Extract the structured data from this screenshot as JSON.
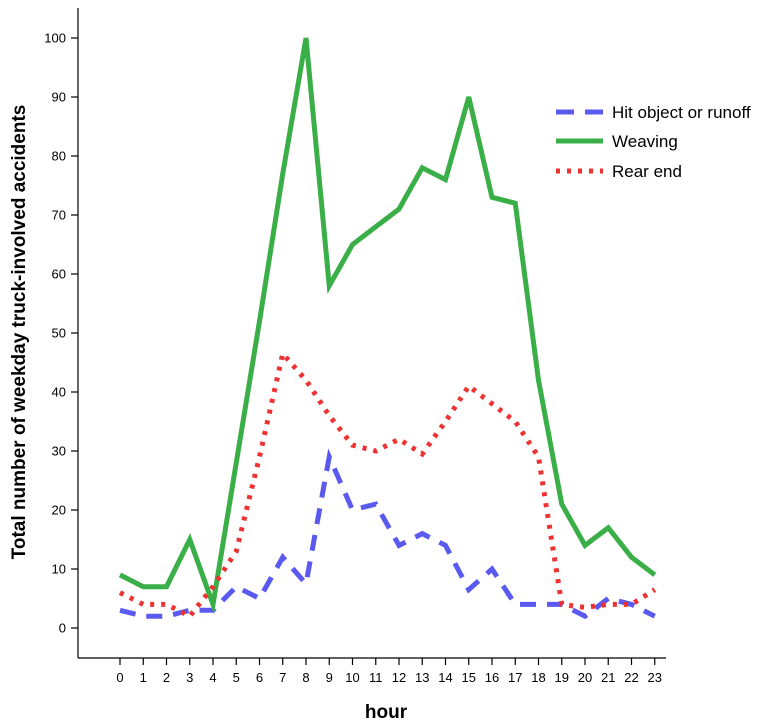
{
  "chart_data": {
    "type": "line",
    "title": "",
    "xlabel": "hour",
    "ylabel": "Total number of weekday truck-involved accidents",
    "x": [
      0,
      1,
      2,
      3,
      4,
      5,
      6,
      7,
      8,
      9,
      10,
      11,
      12,
      13,
      14,
      15,
      16,
      17,
      18,
      19,
      20,
      21,
      22,
      23
    ],
    "xticks": [
      "0",
      "1",
      "2",
      "3",
      "4",
      "5",
      "6",
      "7",
      "8",
      "9",
      "10",
      "11",
      "12",
      "13",
      "14",
      "15",
      "16",
      "17",
      "18",
      "19",
      "20",
      "21",
      "22",
      "23"
    ],
    "yticks": [
      "0",
      "10",
      "20",
      "30",
      "40",
      "50",
      "60",
      "70",
      "80",
      "90",
      "100"
    ],
    "ylim": [
      0,
      100
    ],
    "grid": false,
    "legend_position": "top-right",
    "series": [
      {
        "name": "Hit object or runoff",
        "style": "dashed",
        "color": "#5a5af0",
        "values": [
          3,
          2,
          2,
          3,
          3,
          7,
          5,
          12,
          7.5,
          29,
          20,
          21,
          14,
          16,
          14,
          6.5,
          10,
          4,
          4,
          4,
          2,
          5,
          4,
          2
        ]
      },
      {
        "name": "Weaving",
        "style": "solid",
        "color": "#3aaf48",
        "values": [
          9,
          7,
          7,
          15,
          4,
          28,
          52,
          77,
          100,
          58,
          65,
          68,
          71,
          78,
          76,
          90,
          73,
          72,
          42,
          21,
          14,
          17,
          12,
          9
        ]
      },
      {
        "name": "Rear end",
        "style": "dotted",
        "color": "#ee3232",
        "values": [
          6,
          4,
          4,
          2,
          7,
          13,
          29,
          46.5,
          42,
          36,
          31,
          30,
          32,
          29.5,
          35,
          41,
          38,
          35,
          29,
          4,
          3.5,
          4,
          4,
          6.5
        ]
      }
    ]
  }
}
